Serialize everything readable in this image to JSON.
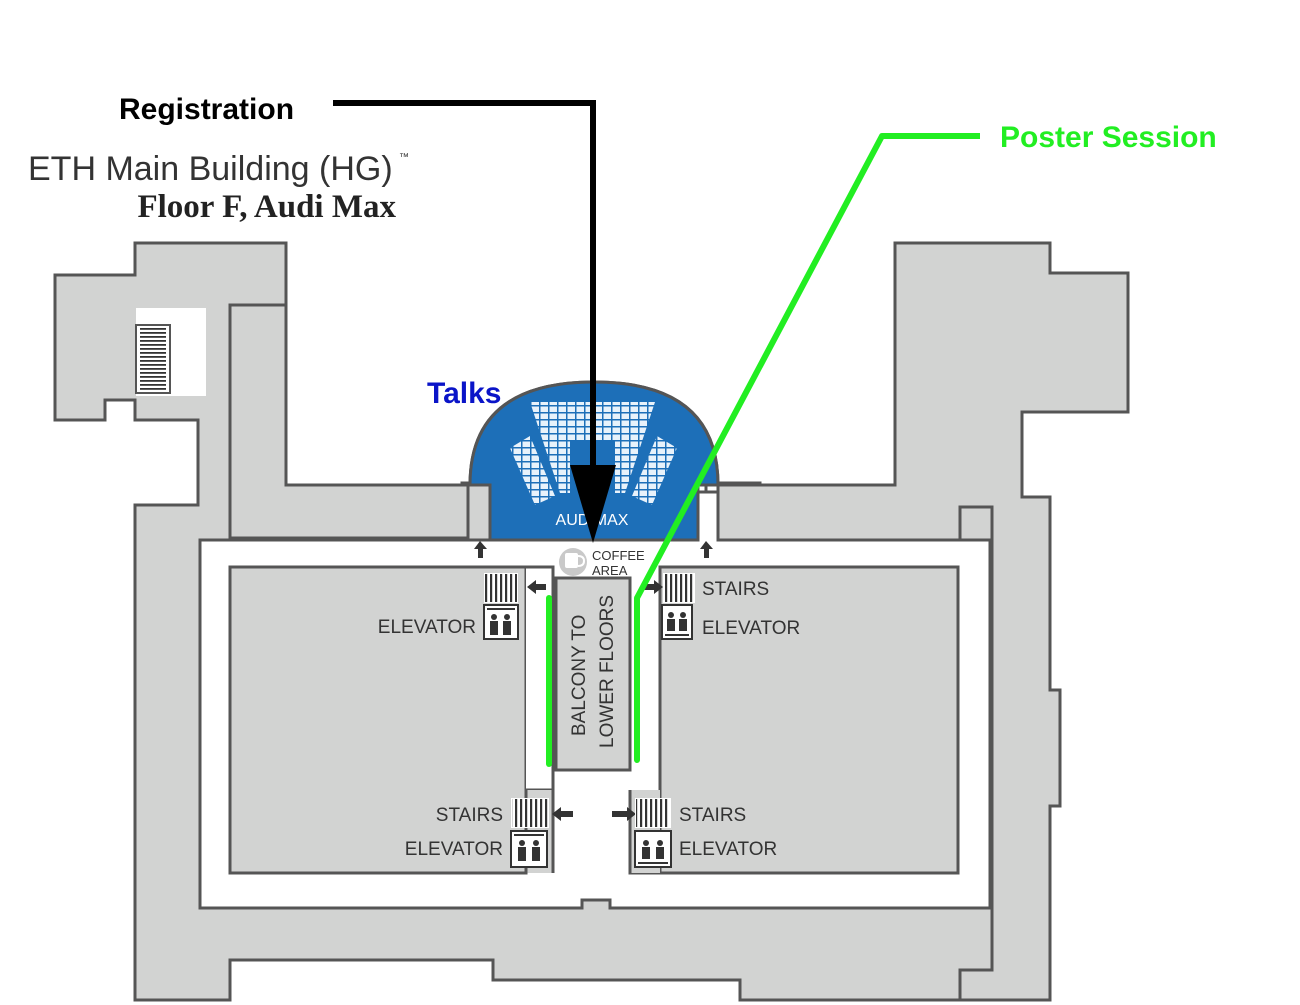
{
  "title": {
    "line1": "ETH Main Building (HG)",
    "line2": "Floor F, Audi Max"
  },
  "annotations": {
    "registration": "Registration",
    "poster_session": "Poster Session",
    "talks": "Talks"
  },
  "rooms": {
    "audimax": "AUDIMAX",
    "coffee_line1": "COFFEE",
    "coffee_line2": "AREA",
    "balcony_line1": "BALCONY TO",
    "balcony_line2": "LOWER FLOORS"
  },
  "labels": {
    "elevator_left_upper": "ELEVATOR",
    "stairs_right_upper": "STAIRS",
    "elevator_right_upper": "ELEVATOR",
    "stairs_left_lower": "STAIRS",
    "elevator_left_lower": "ELEVATOR",
    "stairs_right_lower": "STAIRS",
    "elevator_right_lower": "ELEVATOR"
  },
  "colors": {
    "wall_fill": "#d2d3d2",
    "wall_stroke": "#555555",
    "auditorium": "#1d6fb8",
    "registration_line": "#000000",
    "poster_line": "#22ee22",
    "talks_text": "#0a14c8",
    "label_text": "#333333"
  },
  "icons": [
    "stairs-icon",
    "elevator-icon",
    "coffee-cup-icon",
    "arrow-icon"
  ]
}
